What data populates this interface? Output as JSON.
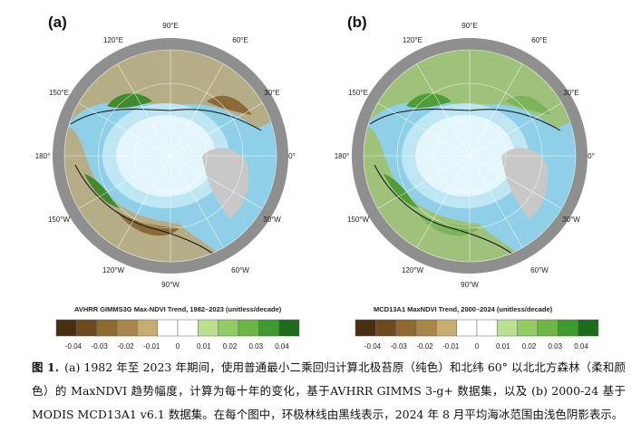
{
  "figure": {
    "panels": [
      {
        "label": "(a)",
        "colorbar_title": "AVHRR GIMMS3G Max-NDVI Trend, 1982–2023 (unitless/decade)"
      },
      {
        "label": "(b)",
        "colorbar_title": "MCD13A1 MaxNDVI Trend, 2000–2024 (unitless/decade)"
      }
    ],
    "longitude_labels": [
      "90°E",
      "120°E",
      "60°E",
      "150°E",
      "30°E",
      "180°",
      "0°",
      "150°W",
      "30°W",
      "120°W",
      "60°W",
      "90°W"
    ],
    "colorbar_ticks": [
      "-0.04",
      "-0.03",
      "-0.02",
      "-0.01",
      "0",
      "0.01",
      "0.02",
      "0.03",
      "0.04"
    ],
    "colorbar_colors": [
      "#4a2e12",
      "#6e4a1e",
      "#8f6a2e",
      "#a8854a",
      "#c8ad72",
      "#ffffff",
      "#ffffff",
      "#b8e08e",
      "#8fcc64",
      "#6bb646",
      "#3f9a32",
      "#1e6b1e"
    ]
  },
  "caption": {
    "label": "图 1.",
    "text": "(a) 1982 年至 2023 年期间，使用普通最小二乘回归计算北极苔原（纯色）和北纬 60° 以北北方森林（柔和颜色）的 MaxNDVI 趋势幅度，计算为每十年的变化，基于AVHRR GIMMS 3-g+ 数据集，以及 (b) 2000-24 基于 MODIS MCD13A1 v6.1 数据集。在每个图中，环极林线由黑线表示，2024 年 8 月平均海冰范围由浅色阴影表示。"
  }
}
